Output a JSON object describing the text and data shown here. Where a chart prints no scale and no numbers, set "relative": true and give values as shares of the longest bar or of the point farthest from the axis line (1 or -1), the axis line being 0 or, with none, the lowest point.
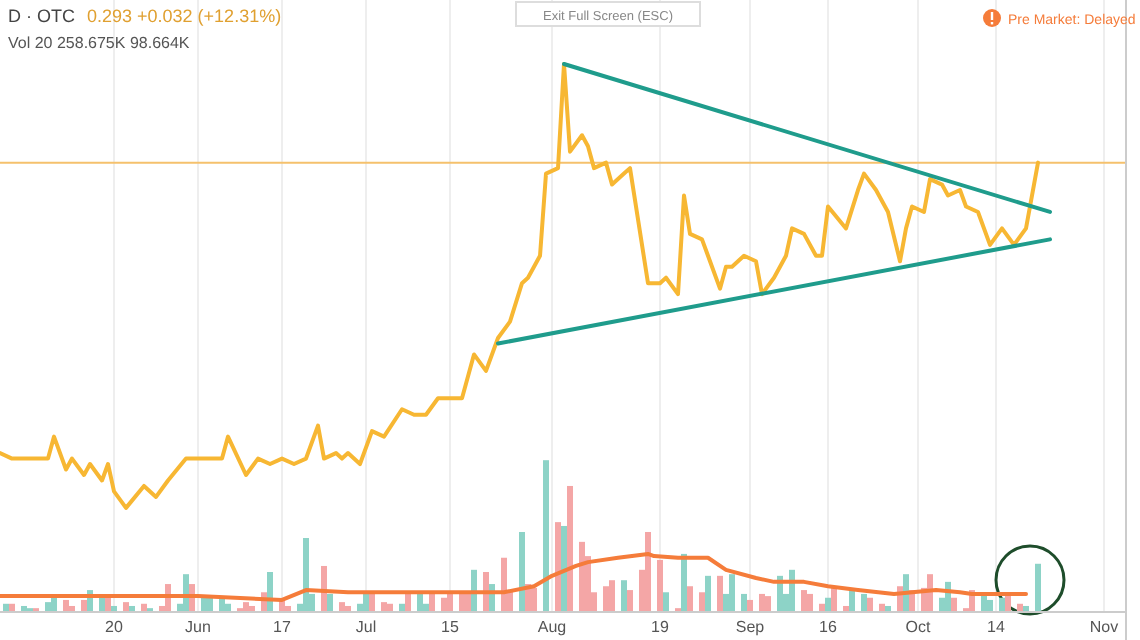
{
  "chart_data": {
    "type": "line",
    "title": "D · OTC",
    "relative": true,
    "grid": "x",
    "annotations": [
      "0.293 +0.032 (+12.31%)",
      "Vol 20 258.675K 98.664K",
      "Exit Full Screen (ESC)",
      "Pre Market: Delayed"
    ],
    "xlim": [
      "--05-01",
      "--11-02"
    ],
    "xticks": [
      {
        "value": "--05-20",
        "label": "20"
      },
      {
        "value": "--06-03",
        "label": "Jun"
      },
      {
        "value": "--06-17",
        "label": "17"
      },
      {
        "value": "--07-01",
        "label": "Jul"
      },
      {
        "value": "--07-15",
        "label": "15"
      },
      {
        "value": "--08-01",
        "label": "Aug"
      },
      {
        "value": "--08-19",
        "label": "19"
      },
      {
        "value": "--09-03",
        "label": "Sep"
      },
      {
        "value": "--09-16",
        "label": "16"
      },
      {
        "value": "--10-01",
        "label": "Oct"
      },
      {
        "value": "--10-14",
        "label": "14"
      },
      {
        "value": "--11-01",
        "label": "Nov"
      }
    ],
    "ref_lines": [
      {
        "axis": "y",
        "value": 0.82,
        "color": "#f5c16c"
      }
    ],
    "series": [
      {
        "type": "bar",
        "x": [
          "--05-02",
          "--05-03",
          "--05-05",
          "--05-06",
          "--05-07",
          "--05-09",
          "--05-10",
          "--05-12",
          "--05-13",
          "--05-15",
          "--05-16",
          "--05-18",
          "--05-19",
          "--05-20",
          "--05-22",
          "--05-23",
          "--05-25",
          "--05-26",
          "--05-28",
          "--05-29",
          "--05-31",
          "--06-01",
          "--06-02",
          "--06-04",
          "--06-05",
          "--06-07",
          "--06-08",
          "--06-10",
          "--06-11",
          "--06-12",
          "--06-14",
          "--06-15",
          "--06-17",
          "--06-18",
          "--06-20",
          "--06-21",
          "--06-22",
          "--06-24",
          "--06-25",
          "--06-27",
          "--06-28",
          "--06-30",
          "--07-01",
          "--07-02",
          "--07-04",
          "--07-05",
          "--07-07",
          "--07-08",
          "--07-10",
          "--07-11",
          "--07-12",
          "--07-14",
          "--07-15",
          "--07-17",
          "--07-18",
          "--07-19",
          "--07-21",
          "--07-22",
          "--07-24",
          "--07-25",
          "--07-27",
          "--07-28",
          "--07-29",
          "--07-31",
          "--08-02",
          "--08-03",
          "--08-04",
          "--08-06",
          "--08-07",
          "--08-08",
          "--08-10",
          "--08-11",
          "--08-13",
          "--08-14",
          "--08-16",
          "--08-17",
          "--08-19",
          "--08-20",
          "--08-22",
          "--08-23",
          "--08-24",
          "--08-26",
          "--08-27",
          "--08-29",
          "--08-30",
          "--08-31",
          "--09-02",
          "--09-03",
          "--09-05",
          "--09-06",
          "--09-08",
          "--09-09",
          "--09-10",
          "--09-12",
          "--09-13",
          "--09-15",
          "--09-16",
          "--09-17",
          "--09-19",
          "--09-20",
          "--09-22",
          "--09-23",
          "--09-25",
          "--09-26",
          "--09-28",
          "--09-29",
          "--09-30",
          "--10-02",
          "--10-03",
          "--10-05",
          "--10-06",
          "--10-07",
          "--10-09",
          "--10-10",
          "--10-12",
          "--10-13",
          "--10-15",
          "--10-16",
          "--10-18",
          "--10-19",
          "--10-21"
        ],
        "values": [
          0.015,
          0.015,
          0.011,
          0.007,
          0.007,
          0.018,
          0.026,
          0.022,
          0.011,
          0.022,
          0.04,
          0.026,
          0.029,
          0.011,
          0.018,
          0.011,
          0.015,
          0.007,
          0.011,
          0.051,
          0.015,
          0.069,
          0.051,
          0.026,
          0.026,
          0.026,
          0.015,
          0.007,
          0.018,
          0.011,
          0.036,
          0.073,
          0.022,
          0.011,
          0.015,
          0.135,
          0.033,
          0.084,
          0.033,
          0.018,
          0.011,
          0.015,
          0.036,
          0.033,
          0.018,
          0.015,
          0.015,
          0.036,
          0.036,
          0.015,
          0.033,
          0.026,
          0.033,
          0.033,
          0.033,
          0.077,
          0.073,
          0.051,
          0.099,
          0.04,
          0.146,
          0.051,
          0.044,
          0.277,
          0.164,
          0.157,
          0.23,
          0.128,
          0.102,
          0.036,
          0.047,
          0.058,
          0.058,
          0.04,
          0.077,
          0.146,
          0.095,
          0.036,
          0.007,
          0.106,
          0.047,
          0.036,
          0.066,
          0.066,
          0.033,
          0.069,
          0.033,
          0.022,
          0.033,
          0.029,
          0.066,
          0.033,
          0.077,
          0.04,
          0.033,
          0.015,
          0.026,
          0.047,
          0.011,
          0.04,
          0.033,
          0.026,
          0.015,
          0.011,
          0.047,
          0.069,
          0.04,
          0.044,
          0.069,
          0.026,
          0.055,
          0.026,
          0.007,
          0.04,
          0.033,
          0.022,
          0.026,
          0.033,
          0.015,
          0.011,
          0.088
        ],
        "colors": [
          "#8dd3c7",
          "#f4a6a6",
          "#8dd3c7",
          "#8dd3c7",
          "#f4a6a6",
          "#8dd3c7",
          "#8dd3c7",
          "#f4a6a6",
          "#f4a6a6",
          "#f4a6a6",
          "#8dd3c7",
          "#8dd3c7",
          "#f4a6a6",
          "#8dd3c7",
          "#f4a6a6",
          "#8dd3c7",
          "#f4a6a6",
          "#8dd3c7",
          "#f4a6a6",
          "#f4a6a6",
          "#8dd3c7",
          "#8dd3c7",
          "#f4a6a6",
          "#8dd3c7",
          "#8dd3c7",
          "#8dd3c7",
          "#8dd3c7",
          "#f4a6a6",
          "#f4a6a6",
          "#f4a6a6",
          "#f4a6a6",
          "#8dd3c7",
          "#f4a6a6",
          "#f4a6a6",
          "#8dd3c7",
          "#8dd3c7",
          "#8dd3c7",
          "#f4a6a6",
          "#8dd3c7",
          "#f4a6a6",
          "#f4a6a6",
          "#8dd3c7",
          "#8dd3c7",
          "#f4a6a6",
          "#f4a6a6",
          "#f4a6a6",
          "#8dd3c7",
          "#f4a6a6",
          "#8dd3c7",
          "#8dd3c7",
          "#f4a6a6",
          "#f4a6a6",
          "#f4a6a6",
          "#f4a6a6",
          "#f4a6a6",
          "#8dd3c7",
          "#f4a6a6",
          "#8dd3c7",
          "#f4a6a6",
          "#f4a6a6",
          "#8dd3c7",
          "#f4a6a6",
          "#f4a6a6",
          "#8dd3c7",
          "#f4a6a6",
          "#8dd3c7",
          "#f4a6a6",
          "#f4a6a6",
          "#f4a6a6",
          "#f4a6a6",
          "#f4a6a6",
          "#f4a6a6",
          "#8dd3c7",
          "#f4a6a6",
          "#f4a6a6",
          "#f4a6a6",
          "#f4a6a6",
          "#8dd3c7",
          "#f4a6a6",
          "#8dd3c7",
          "#f4a6a6",
          "#f4a6a6",
          "#8dd3c7",
          "#f4a6a6",
          "#8dd3c7",
          "#8dd3c7",
          "#8dd3c7",
          "#f4a6a6",
          "#f4a6a6",
          "#f4a6a6",
          "#8dd3c7",
          "#8dd3c7",
          "#8dd3c7",
          "#f4a6a6",
          "#f4a6a6",
          "#f4a6a6",
          "#8dd3c7",
          "#f4a6a6",
          "#f4a6a6",
          "#8dd3c7",
          "#8dd3c7",
          "#f4a6a6",
          "#f4a6a6",
          "#8dd3c7",
          "#f4a6a6",
          "#8dd3c7",
          "#f4a6a6",
          "#f4a6a6",
          "#f4a6a6",
          "#8dd3c7",
          "#8dd3c7",
          "#f4a6a6",
          "#f4a6a6",
          "#f4a6a6",
          "#8dd3c7",
          "#8dd3c7",
          "#8dd3c7",
          "#f4a6a6",
          "#f4a6a6",
          "#8dd3c7",
          "#8dd3c7"
        ]
      },
      {
        "color": "#f57c3a",
        "x": [
          "--05-01",
          "--06-03",
          "--06-17",
          "--06-21",
          "--06-28",
          "--07-18",
          "--07-24",
          "--07-29",
          "--08-01",
          "--08-05",
          "--08-07",
          "--08-12",
          "--08-17",
          "--08-18",
          "--08-22",
          "--08-27",
          "--08-30",
          "--09-04",
          "--09-07",
          "--09-12",
          "--09-16",
          "--09-21",
          "--09-27",
          "--10-04",
          "--10-08",
          "--10-10",
          "--10-19"
        ],
        "values": [
          0.029,
          0.029,
          0.022,
          0.04,
          0.036,
          0.036,
          0.036,
          0.047,
          0.066,
          0.084,
          0.091,
          0.099,
          0.106,
          0.102,
          0.099,
          0.099,
          0.077,
          0.062,
          0.055,
          0.055,
          0.047,
          0.04,
          0.033,
          0.04,
          0.036,
          0.033,
          0.033
        ]
      },
      {
        "color": "#f7b733",
        "x": [
          "--05-01",
          "--05-03",
          "--05-07",
          "--05-09",
          "--05-10",
          "--05-12",
          "--05-13",
          "--05-15",
          "--05-16",
          "--05-18",
          "--05-19",
          "--05-20",
          "--05-22",
          "--05-25",
          "--05-27",
          "--05-29",
          "--06-01",
          "--06-07",
          "--06-08",
          "--06-11",
          "--06-13",
          "--06-15",
          "--06-17",
          "--06-19",
          "--06-21",
          "--06-23",
          "--06-24",
          "--06-26",
          "--06-27",
          "--06-28",
          "--06-30",
          "--07-02",
          "--07-04",
          "--07-07",
          "--07-09",
          "--07-11",
          "--07-13",
          "--07-17",
          "--07-19",
          "--07-21",
          "--07-23",
          "--07-25",
          "--07-27",
          "--07-28",
          "--07-30",
          "--07-31",
          "--08-02",
          "--08-03",
          "--08-04",
          "--08-06",
          "--08-07",
          "--08-08",
          "--08-10",
          "--08-11",
          "--08-13",
          "--08-14",
          "--08-17",
          "--08-19",
          "--08-20",
          "--08-22",
          "--08-23",
          "--08-24",
          "--08-26",
          "--08-27",
          "--08-29",
          "--08-30",
          "--08-31",
          "--09-02",
          "--09-04",
          "--09-05",
          "--09-07",
          "--09-09",
          "--09-10",
          "--09-12",
          "--09-14",
          "--09-15",
          "--09-16",
          "--09-19",
          "--09-21",
          "--09-22",
          "--09-24",
          "--09-26",
          "--09-28",
          "--09-29",
          "--09-30",
          "--10-02",
          "--10-03",
          "--10-05",
          "--10-06",
          "--10-08",
          "--10-09",
          "--10-11",
          "--10-13",
          "--10-15",
          "--10-17",
          "--10-19",
          "--10-21"
        ],
        "values": [
          0.29,
          0.28,
          0.28,
          0.28,
          0.32,
          0.26,
          0.28,
          0.25,
          0.27,
          0.24,
          0.27,
          0.22,
          0.19,
          0.23,
          0.21,
          0.24,
          0.28,
          0.28,
          0.32,
          0.25,
          0.28,
          0.27,
          0.28,
          0.27,
          0.28,
          0.34,
          0.28,
          0.29,
          0.28,
          0.29,
          0.27,
          0.33,
          0.32,
          0.37,
          0.36,
          0.36,
          0.39,
          0.39,
          0.47,
          0.44,
          0.5,
          0.53,
          0.6,
          0.61,
          0.65,
          0.8,
          0.81,
          1.0,
          0.84,
          0.87,
          0.85,
          0.81,
          0.82,
          0.78,
          0.8,
          0.81,
          0.6,
          0.6,
          0.61,
          0.58,
          0.76,
          0.69,
          0.68,
          0.65,
          0.59,
          0.63,
          0.63,
          0.65,
          0.64,
          0.58,
          0.61,
          0.65,
          0.7,
          0.69,
          0.65,
          0.65,
          0.74,
          0.7,
          0.77,
          0.8,
          0.77,
          0.73,
          0.64,
          0.7,
          0.74,
          0.73,
          0.79,
          0.78,
          0.76,
          0.77,
          0.74,
          0.73,
          0.67,
          0.7,
          0.67,
          0.7,
          0.82
        ]
      },
      {
        "color": "#1f9c8c",
        "x": [
          "--08-03",
          "--10-23"
        ],
        "values": [
          1.0,
          0.73
        ]
      },
      {
        "color": "#1f9c8c",
        "x": [
          "--07-23",
          "--10-23"
        ],
        "values": [
          0.49,
          0.68
        ]
      }
    ]
  }
}
